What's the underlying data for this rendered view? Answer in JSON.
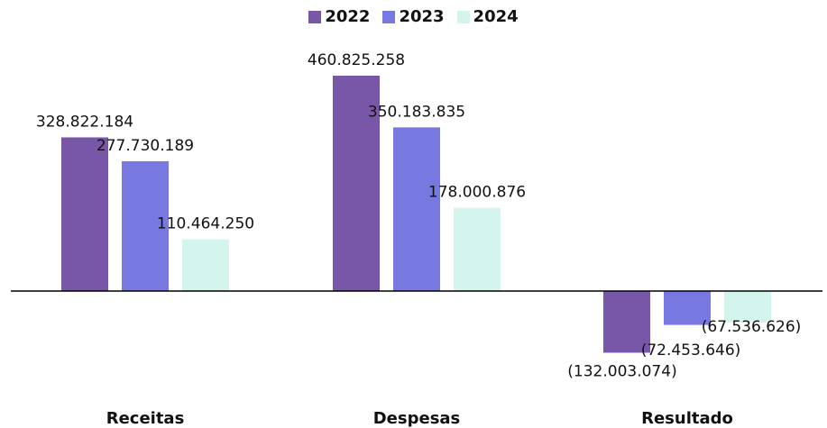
{
  "chart_data": {
    "type": "bar",
    "categories": [
      "Receitas",
      "Despesas",
      "Resultado"
    ],
    "series": [
      {
        "name": "2022",
        "color": "#7856a8",
        "values": [
          328822184,
          460825258,
          -132003074
        ],
        "labels": [
          "328.822.184",
          "460.825.258",
          "(132.003.074)"
        ]
      },
      {
        "name": "2023",
        "color": "#7879e0",
        "values": [
          277730189,
          350183835,
          -72453646
        ],
        "labels": [
          "277.730.189",
          "350.183.835",
          "(72.453.646)"
        ]
      },
      {
        "name": "2024",
        "color": "#d4f5ee",
        "values": [
          110464250,
          178000876,
          -67536626
        ],
        "labels": [
          "110.464.250",
          "178.000.876",
          "(67.536.626)"
        ]
      }
    ],
    "title": "",
    "xlabel": "",
    "ylabel": "",
    "legend": "top-center",
    "grid": false
  }
}
